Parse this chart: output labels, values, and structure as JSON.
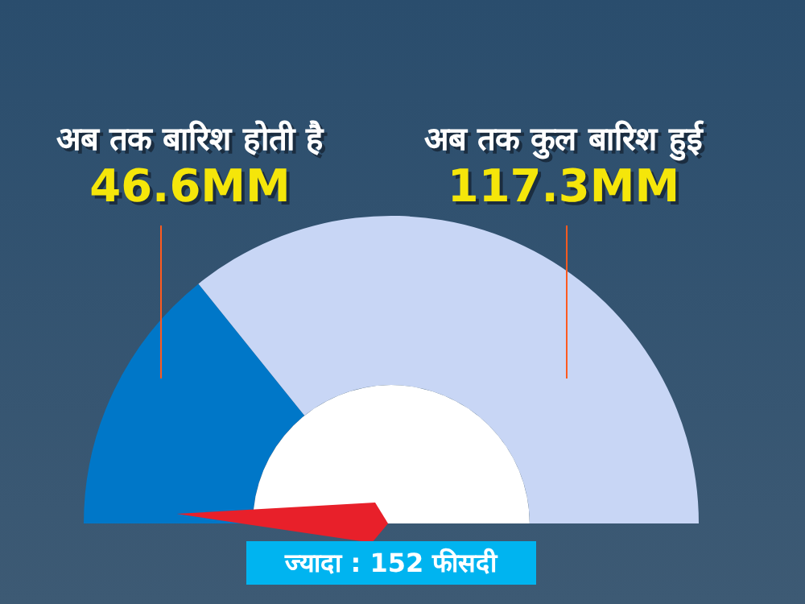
{
  "chart_data": {
    "type": "donut",
    "categories": [
      "अब तक बारिश होती है",
      "अब तक कुल बारिश हुई"
    ],
    "values": [
      46.6,
      117.3
    ],
    "value_labels": [
      "46.6MM",
      "117.3MM"
    ],
    "colors": [
      "#0077c8",
      "#c8d6f5"
    ],
    "needle": "अब तक बारिश होती है",
    "annotations": [
      "ज्यादा : 152 फीसदी"
    ]
  }
}
